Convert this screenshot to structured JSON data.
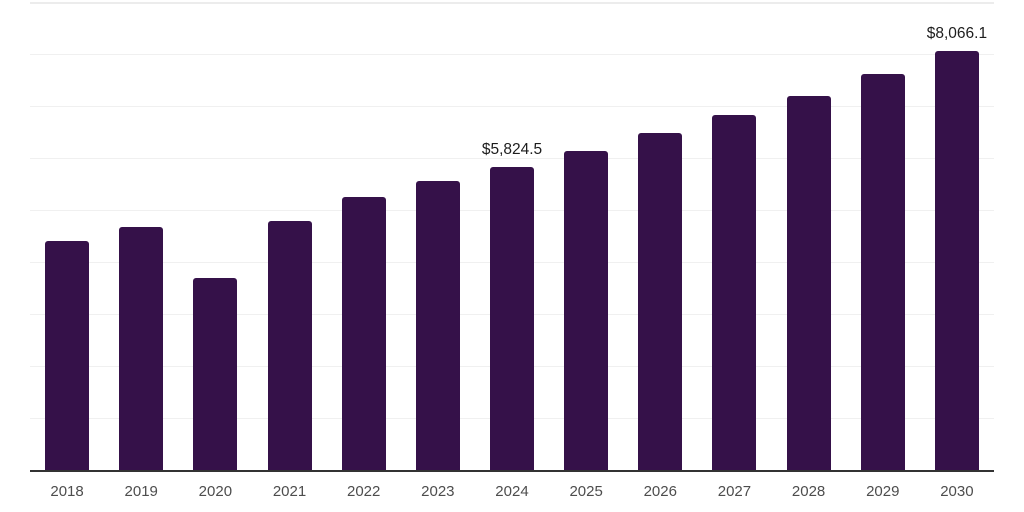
{
  "colors": {
    "background": "#ffffff",
    "bar": "#351149",
    "grid": "#f0f0f0",
    "grid_top": "#ececec",
    "axis_line": "#333333",
    "tick_label": "#4d4d4d",
    "data_label": "#1d1d1d"
  },
  "chart_data": {
    "type": "bar",
    "title": "",
    "xlabel": "",
    "ylabel": "",
    "categories": [
      "2018",
      "2019",
      "2020",
      "2021",
      "2022",
      "2023",
      "2024",
      "2025",
      "2026",
      "2027",
      "2028",
      "2029",
      "2030"
    ],
    "values": [
      4400,
      4670,
      3690,
      4790,
      5250,
      5560,
      5824.5,
      6130,
      6480,
      6830,
      7190,
      7610,
      8066.1
    ],
    "data_labels": {
      "2024": "$5,824.5",
      "2030": "$8,066.1"
    },
    "ylim": [
      0,
      9000
    ],
    "gridline_interval": 1000,
    "grid": true,
    "y_axis_tick_labels_visible": false,
    "legend_position": "none",
    "value_prefix": "$"
  }
}
